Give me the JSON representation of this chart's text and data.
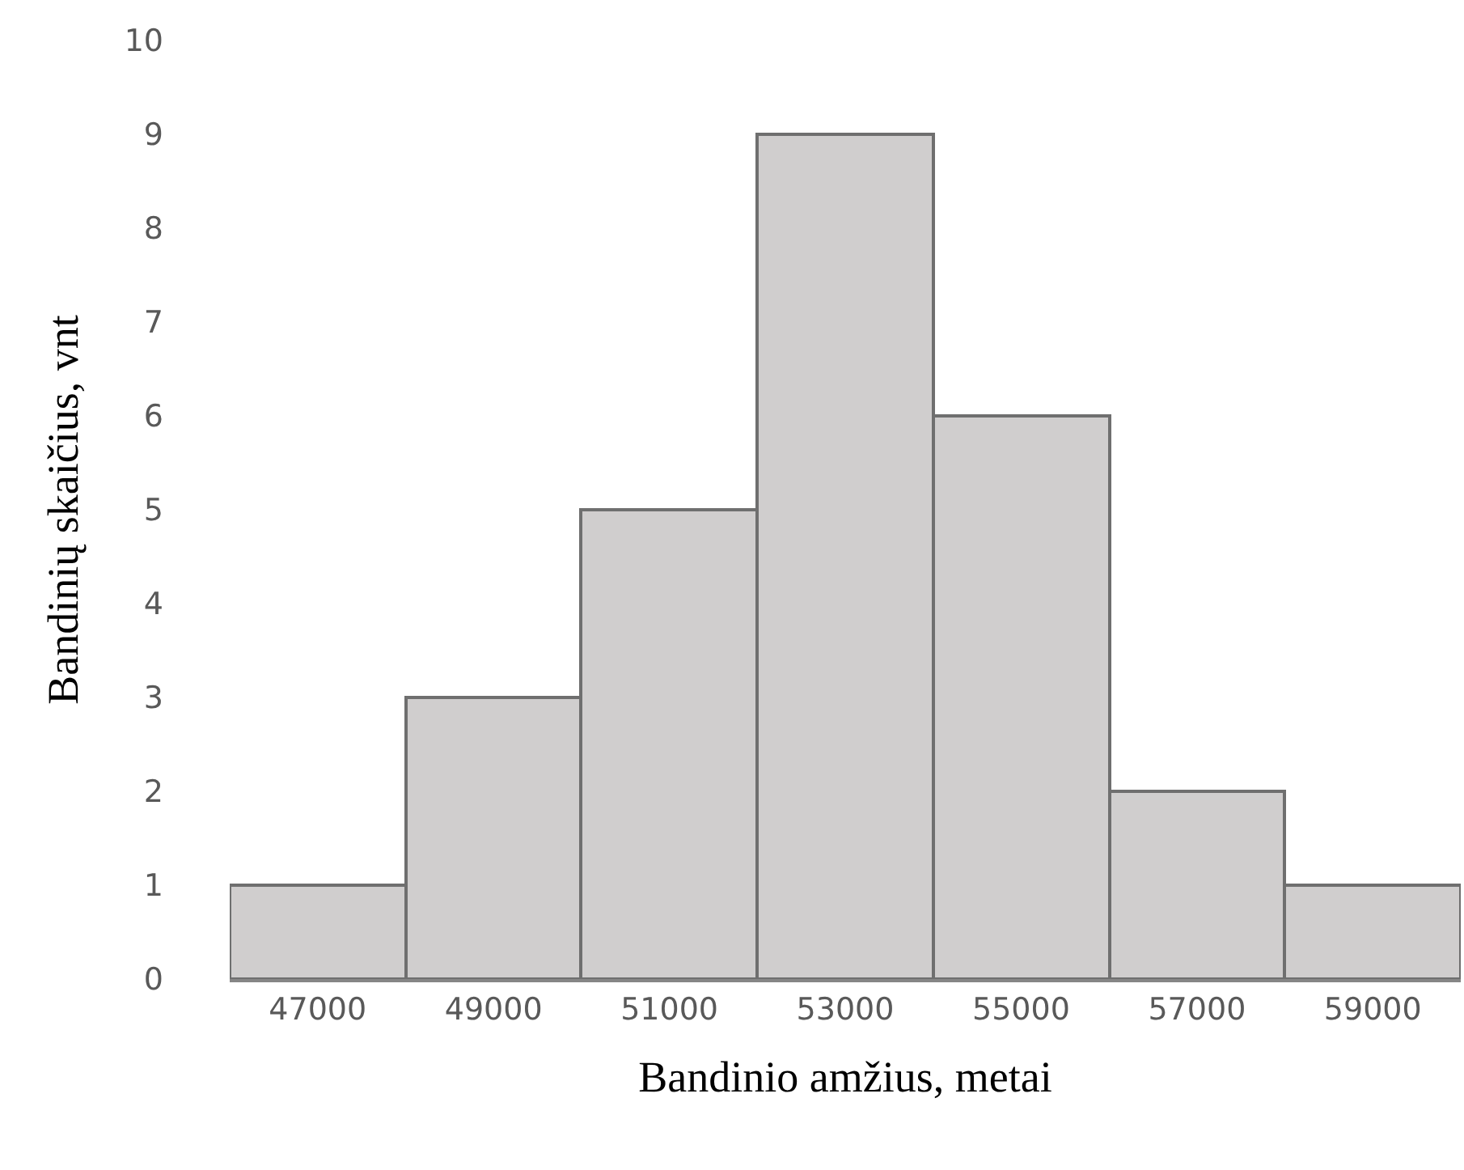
{
  "chart_data": {
    "type": "histogram",
    "xlabel": "Bandinio amžius, metai",
    "ylabel": "Bandinių skaičius, vnt",
    "bins": [
      46000,
      48000,
      50000,
      52000,
      54000,
      56000,
      58000,
      60000
    ],
    "values": [
      1,
      3,
      5,
      9,
      6,
      2,
      1
    ],
    "color": "#d0cece",
    "xlim": [
      46000,
      60000
    ],
    "xticks": [
      47000,
      49000,
      51000,
      53000,
      55000,
      57000,
      59000
    ],
    "ylim": [
      0,
      10
    ],
    "yticks": [
      0,
      1,
      2,
      3,
      4,
      5,
      6,
      7,
      8,
      9,
      10
    ]
  }
}
